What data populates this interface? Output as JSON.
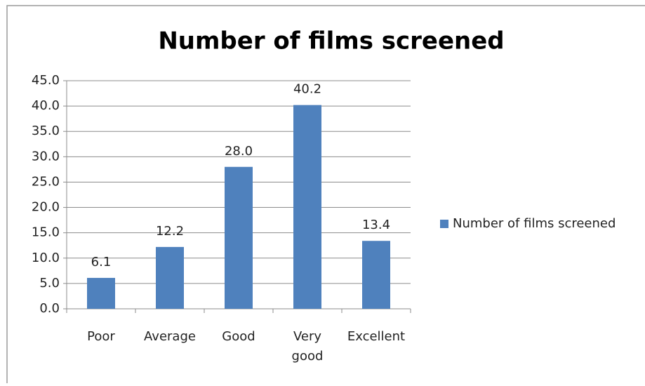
{
  "chart_data": {
    "type": "bar",
    "title": "Number of films screened",
    "categories": [
      "Poor",
      "Average",
      "Good",
      "Very good",
      "Excellent"
    ],
    "series": [
      {
        "name": "Number of films screened",
        "color": "#4f81bd",
        "values": [
          6.1,
          12.2,
          28.0,
          40.2,
          13.4
        ],
        "value_labels": [
          "6.1",
          "12.2",
          "28.0",
          "40.2",
          "13.4"
        ]
      }
    ],
    "ylim": [
      0,
      45
    ],
    "yticks": [
      {
        "value": 0,
        "label": "0.0"
      },
      {
        "value": 5,
        "label": "5.0"
      },
      {
        "value": 10,
        "label": "10.0"
      },
      {
        "value": 15,
        "label": "15.0"
      },
      {
        "value": 20,
        "label": "20.0"
      },
      {
        "value": 25,
        "label": "25.0"
      },
      {
        "value": 30,
        "label": "30.0"
      },
      {
        "value": 35,
        "label": "35.0"
      },
      {
        "value": 40,
        "label": "40.0"
      },
      {
        "value": 45,
        "label": "45.0"
      }
    ],
    "grid": true,
    "legend": "right"
  }
}
